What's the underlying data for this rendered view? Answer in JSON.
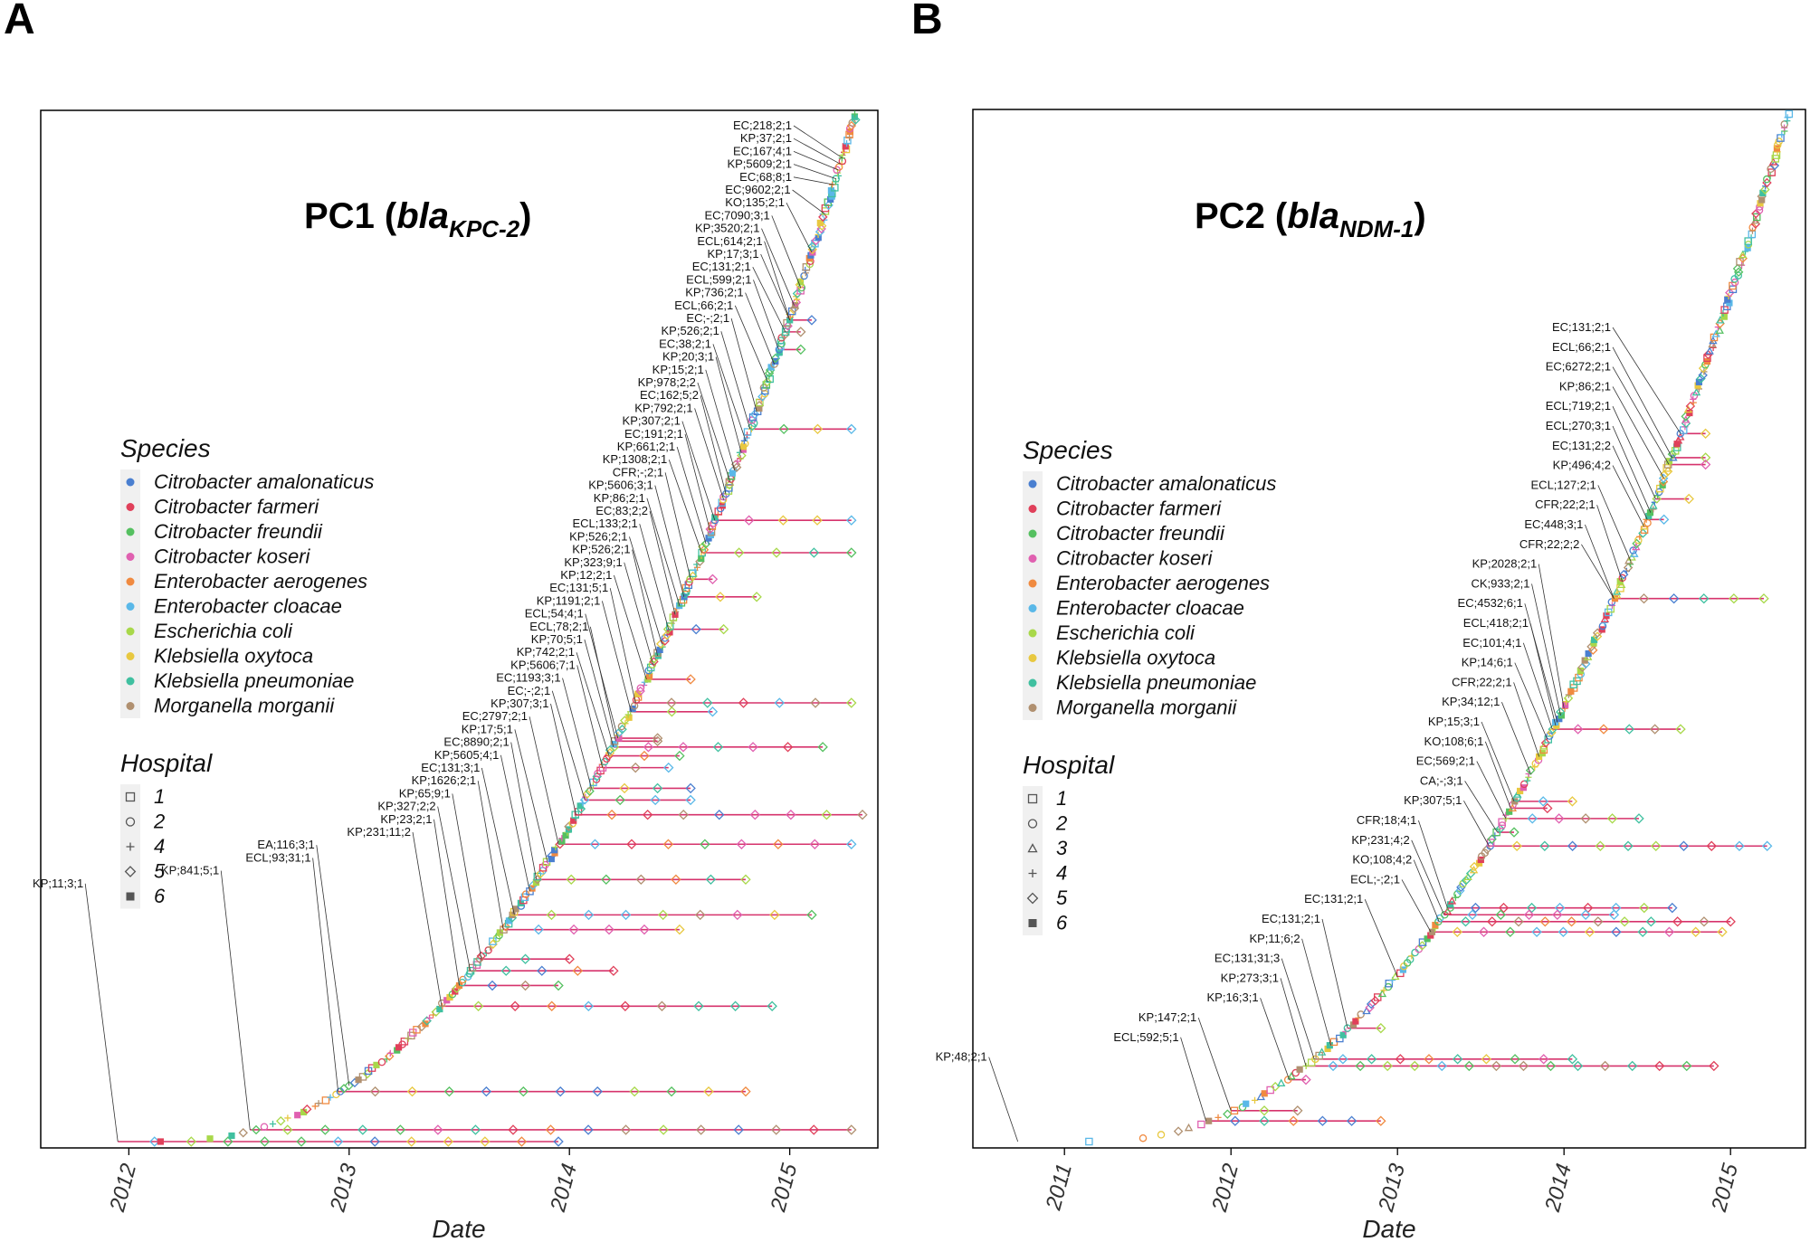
{
  "panels": [
    "A",
    "B"
  ],
  "legend": {
    "species_title": "Species",
    "species": [
      {
        "name": "Citrobacter amalonaticus",
        "color": "#4a7fd0"
      },
      {
        "name": "Citrobacter farmeri",
        "color": "#e0405a"
      },
      {
        "name": "Citrobacter freundii",
        "color": "#55c060"
      },
      {
        "name": "Citrobacter koseri",
        "color": "#e060b0"
      },
      {
        "name": "Enterobacter aerogenes",
        "color": "#f08a40"
      },
      {
        "name": "Enterobacter cloacae",
        "color": "#5ab8e8"
      },
      {
        "name": "Escherichia coli",
        "color": "#a8d84a"
      },
      {
        "name": "Klebsiella oxytoca",
        "color": "#e8c840"
      },
      {
        "name": "Klebsiella pneumoniae",
        "color": "#40c0a0"
      },
      {
        "name": "Morganella morganii",
        "color": "#b09070"
      }
    ],
    "hospital_title": "Hospital",
    "hospitals_a": [
      "1",
      "2",
      "4",
      "5",
      "6"
    ],
    "hospitals_b": [
      "1",
      "2",
      "3",
      "4",
      "5",
      "6"
    ],
    "hospital_symbols_a": [
      "square",
      "circle",
      "plus",
      "diamond",
      "filled-square"
    ],
    "hospital_symbols_b": [
      "square",
      "circle",
      "triangle",
      "plus",
      "diamond",
      "filled-square"
    ]
  },
  "chart_data": [
    {
      "type": "scatter",
      "title_main": "PC1 (",
      "title_italic": "bla",
      "title_sub": "KPC-2",
      "title_close": ")",
      "xlabel": "Date",
      "x_ticks": [
        "2012",
        "2013",
        "2014",
        "2015"
      ],
      "x_tick_values": [
        2012,
        2013,
        2014,
        2015
      ],
      "xlim": [
        2011.6,
        2015.4
      ],
      "n_isolates": 350,
      "line_color": "#d6336c",
      "labeled_isolates": [
        {
          "label": "EC;218;2;1",
          "date": 2015.24,
          "end": 2015.24
        },
        {
          "label": "KP;37;2;1",
          "date": 2015.23,
          "end": 2015.23
        },
        {
          "label": "EC;167;4;1",
          "date": 2015.22,
          "end": 2015.22
        },
        {
          "label": "KP;5609;2;1",
          "date": 2015.21,
          "end": 2015.21
        },
        {
          "label": "EC;68;8;1",
          "date": 2015.2,
          "end": 2015.2
        },
        {
          "label": "EC;9602;2;1",
          "date": 2015.16,
          "end": 2015.16
        },
        {
          "label": "KO;135;2;1",
          "date": 2015.1,
          "end": 2015.1
        },
        {
          "label": "EC;7090;3;1",
          "date": 2015.05,
          "end": 2015.05
        },
        {
          "label": "KP;3520;2;1",
          "date": 2015.02,
          "end": 2015.02
        },
        {
          "label": "ECL;614;2;1",
          "date": 2015.0,
          "end": 2015.0
        },
        {
          "label": "KP;17;3;1",
          "date": 2015.0,
          "end": 2015.1
        },
        {
          "label": "EC;131;2;1",
          "date": 2014.98,
          "end": 2015.05
        },
        {
          "label": "ECL;599;2;1",
          "date": 2014.95,
          "end": 2015.05
        },
        {
          "label": "KP;736;2;1",
          "date": 2014.93,
          "end": 2014.93
        },
        {
          "label": "ECL;66;2;1",
          "date": 2014.9,
          "end": 2014.9
        },
        {
          "label": "EC;-;2;1",
          "date": 2014.85,
          "end": 2014.85
        },
        {
          "label": "KP;526;2;1",
          "date": 2014.82,
          "end": 2015.28
        },
        {
          "label": "EC;38;2;1",
          "date": 2014.8,
          "end": 2014.8
        },
        {
          "label": "KP;20;3;1",
          "date": 2014.78,
          "end": 2014.78
        },
        {
          "label": "KP;15;2;1",
          "date": 2014.75,
          "end": 2014.75
        },
        {
          "label": "KP;978;2;2",
          "date": 2014.73,
          "end": 2014.73
        },
        {
          "label": "EC;162;5;2",
          "date": 2014.71,
          "end": 2014.71
        },
        {
          "label": "KP;792;2;1",
          "date": 2014.7,
          "end": 2014.7
        },
        {
          "label": "KP;307;2;1",
          "date": 2014.66,
          "end": 2015.28
        },
        {
          "label": "EC;191;2;1",
          "date": 2014.64,
          "end": 2014.64
        },
        {
          "label": "KP;661;2;1",
          "date": 2014.62,
          "end": 2014.62
        },
        {
          "label": "KP;1308;2;1",
          "date": 2014.6,
          "end": 2015.28
        },
        {
          "label": "CFR;-;2;1",
          "date": 2014.55,
          "end": 2014.65
        },
        {
          "label": "KP;5606;3;1",
          "date": 2014.52,
          "end": 2014.85
        },
        {
          "label": "KP;86;2;1",
          "date": 2014.5,
          "end": 2014.5
        },
        {
          "label": "EC;83;2;2",
          "date": 2014.48,
          "end": 2014.48
        },
        {
          "label": "ECL;133;2;1",
          "date": 2014.45,
          "end": 2014.7
        },
        {
          "label": "KP;526;2;1",
          "date": 2014.42,
          "end": 2014.42
        },
        {
          "label": "KP;526;2;1",
          "date": 2014.4,
          "end": 2014.4
        },
        {
          "label": "KP;323;9;1",
          "date": 2014.38,
          "end": 2014.38
        },
        {
          "label": "KP;12;2;1",
          "date": 2014.35,
          "end": 2014.55
        },
        {
          "label": "EC;131;5;1",
          "date": 2014.3,
          "end": 2015.28
        },
        {
          "label": "KP;1191;2;1",
          "date": 2014.28,
          "end": 2014.65
        },
        {
          "label": "ECL;54;4;1",
          "date": 2014.22,
          "end": 2014.4
        },
        {
          "label": "ECL;78;2;1",
          "date": 2014.21,
          "end": 2014.4
        },
        {
          "label": "KP;70;5;1",
          "date": 2014.2,
          "end": 2015.15
        },
        {
          "label": "KP;742;2;1",
          "date": 2014.18,
          "end": 2014.5
        },
        {
          "label": "KP;5606;7;1",
          "date": 2014.15,
          "end": 2014.45
        },
        {
          "label": "EC;1193;3;1",
          "date": 2014.1,
          "end": 2014.55
        },
        {
          "label": "EC;-;2;1",
          "date": 2014.07,
          "end": 2014.55
        },
        {
          "label": "KP;307;3;1",
          "date": 2014.03,
          "end": 2015.33
        },
        {
          "label": "EC;2797;2;1",
          "date": 2013.95,
          "end": 2015.28
        },
        {
          "label": "KP;17;5;1",
          "date": 2013.9,
          "end": 2013.9
        },
        {
          "label": "EC;8890;2;1",
          "date": 2013.85,
          "end": 2014.8
        },
        {
          "label": "KP;5605;4;1",
          "date": 2013.82,
          "end": 2013.82
        },
        {
          "label": "EC;131;3;1",
          "date": 2013.75,
          "end": 2015.1
        },
        {
          "label": "KP;1626;2;1",
          "date": 2013.7,
          "end": 2014.5
        },
        {
          "label": "KP;65;9;1",
          "date": 2013.6,
          "end": 2014.0
        },
        {
          "label": "KP;327;2;2",
          "date": 2013.55,
          "end": 2014.2
        },
        {
          "label": "KP;23;2;1",
          "date": 2013.5,
          "end": 2013.95
        },
        {
          "label": "KP;231;11;2",
          "date": 2013.42,
          "end": 2014.92
        },
        {
          "label": "EA;116;3;1",
          "date": 2013.0,
          "end": 2013.0
        },
        {
          "label": "ECL;93;31;1",
          "date": 2012.95,
          "end": 2014.8
        },
        {
          "label": "KP;841;5;1",
          "date": 2012.55,
          "end": 2015.28
        },
        {
          "label": "KP;11;3;1",
          "date": 2011.95,
          "end": 2013.95
        }
      ]
    },
    {
      "type": "scatter",
      "title_main": "PC2 (",
      "title_italic": "bla",
      "title_sub": "NDM-1",
      "title_close": ")",
      "xlabel": "Date",
      "x_ticks": [
        "2011",
        "2012",
        "2013",
        "2014",
        "2015"
      ],
      "x_tick_values": [
        2011,
        2012,
        2013,
        2014,
        2015
      ],
      "xlim": [
        2010.45,
        2015.45
      ],
      "n_isolates": 300,
      "line_color": "#d6336c",
      "labeled_isolates": [
        {
          "label": "EC;131;2;1",
          "date": 2014.7,
          "end": 2014.85
        },
        {
          "label": "ECL;66;2;1",
          "date": 2014.65,
          "end": 2014.85
        },
        {
          "label": "EC;6272;2;1",
          "date": 2014.63,
          "end": 2014.85
        },
        {
          "label": "KP;86;2;1",
          "date": 2014.6,
          "end": 2014.6
        },
        {
          "label": "ECL;719;2;1",
          "date": 2014.55,
          "end": 2014.75
        },
        {
          "label": "ECL;270;3;1",
          "date": 2014.52,
          "end": 2014.52
        },
        {
          "label": "EC;131;2;2",
          "date": 2014.5,
          "end": 2014.6
        },
        {
          "label": "KP;496;4;2",
          "date": 2014.48,
          "end": 2014.48
        },
        {
          "label": "ECL;127;2;1",
          "date": 2014.4,
          "end": 2014.4
        },
        {
          "label": "CFR;22;2;1",
          "date": 2014.35,
          "end": 2014.35
        },
        {
          "label": "EC;448;3;1",
          "date": 2014.3,
          "end": 2014.3
        },
        {
          "label": "CFR;22;2;2",
          "date": 2014.3,
          "end": 2015.2
        },
        {
          "label": "KP;2028;2;1",
          "date": 2014.0,
          "end": 2014.0
        },
        {
          "label": "CK;933;2;1",
          "date": 2013.98,
          "end": 2013.98
        },
        {
          "label": "EC;4532;6;1",
          "date": 2013.96,
          "end": 2013.96
        },
        {
          "label": "ECL;418;2;1",
          "date": 2013.95,
          "end": 2013.95
        },
        {
          "label": "EC;101;4;1",
          "date": 2013.93,
          "end": 2014.7
        },
        {
          "label": "KP;14;6;1",
          "date": 2013.9,
          "end": 2013.9
        },
        {
          "label": "CFR;22;2;1",
          "date": 2013.85,
          "end": 2013.85
        },
        {
          "label": "KP;34;12;1",
          "date": 2013.8,
          "end": 2013.8
        },
        {
          "label": "KP;15;3;1",
          "date": 2013.7,
          "end": 2014.05
        },
        {
          "label": "KO;108;6;1",
          "date": 2013.68,
          "end": 2013.9
        },
        {
          "label": "EC;569;2;1",
          "date": 2013.65,
          "end": 2014.45
        },
        {
          "label": "CA;-;3;1",
          "date": 2013.6,
          "end": 2013.7
        },
        {
          "label": "KP;307;5;1",
          "date": 2013.55,
          "end": 2015.22
        },
        {
          "label": "CFR;18;4;1",
          "date": 2013.3,
          "end": 2014.65
        },
        {
          "label": "KP;231;4;2",
          "date": 2013.28,
          "end": 2014.3
        },
        {
          "label": "KO;108;4;2",
          "date": 2013.25,
          "end": 2015.0
        },
        {
          "label": "ECL;-;2;1",
          "date": 2013.2,
          "end": 2014.95
        },
        {
          "label": "EC;131;2;1",
          "date": 2013.0,
          "end": 2013.0
        },
        {
          "label": "EC;131;2;1",
          "date": 2012.7,
          "end": 2012.9
        },
        {
          "label": "KP;11;6;2",
          "date": 2012.6,
          "end": 2012.6
        },
        {
          "label": "EC;131;31;3",
          "date": 2012.5,
          "end": 2014.05
        },
        {
          "label": "KP;273;3;1",
          "date": 2012.45,
          "end": 2014.9
        },
        {
          "label": "KP;16;3;1",
          "date": 2012.35,
          "end": 2012.45
        },
        {
          "label": "KP;147;2;1",
          "date": 2012.0,
          "end": 2012.4
        },
        {
          "label": "ECL;592;5;1",
          "date": 2011.85,
          "end": 2012.9
        },
        {
          "label": "KP;48;2;1",
          "date": 2010.72,
          "end": 2010.72
        }
      ]
    }
  ]
}
